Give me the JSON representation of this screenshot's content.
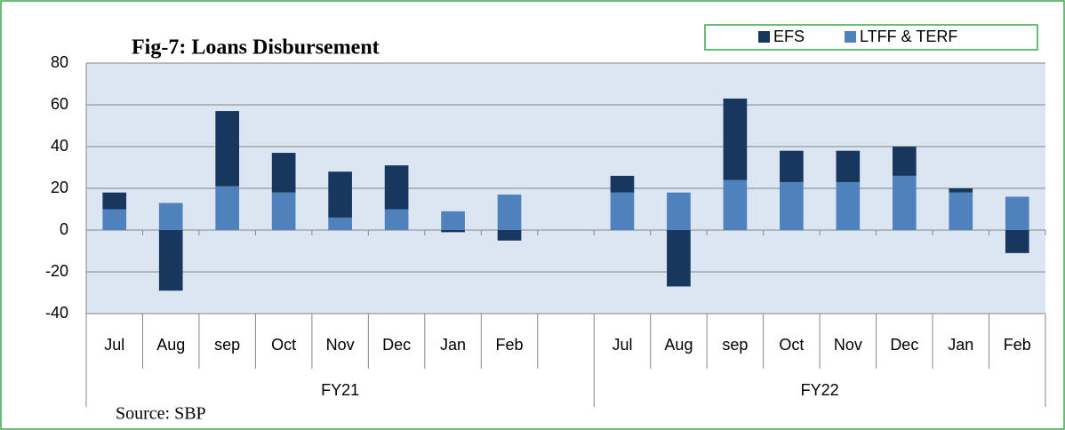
{
  "chart_data": {
    "type": "bar",
    "stacked": true,
    "title": "Fig-7: Loans Disbursement",
    "source": "Source: SBP",
    "categories": [
      "Jul",
      "Aug",
      "sep",
      "Oct",
      "Nov",
      "Dec",
      "Jan",
      "Feb",
      null,
      "Jul",
      "Aug",
      "sep",
      "Oct",
      "Nov",
      "Dec",
      "Jan",
      "Feb"
    ],
    "groups": [
      "FY21",
      "FY22"
    ],
    "series": [
      {
        "name": "EFS",
        "color": "#17375e",
        "values": [
          8,
          -29,
          36,
          19,
          22,
          21,
          -1,
          -5,
          null,
          8,
          -27,
          39,
          15,
          15,
          14,
          2,
          -11
        ]
      },
      {
        "name": "LTFF & TERF",
        "color": "#4f81bd",
        "values": [
          10,
          13,
          21,
          18,
          6,
          10,
          9,
          17,
          null,
          18,
          18,
          24,
          23,
          23,
          26,
          18,
          16
        ]
      }
    ],
    "ylim": [
      -40,
      80
    ],
    "yticks": [
      -40,
      -20,
      0,
      20,
      40,
      60,
      80
    ],
    "grid": true,
    "legend": "top-right"
  }
}
